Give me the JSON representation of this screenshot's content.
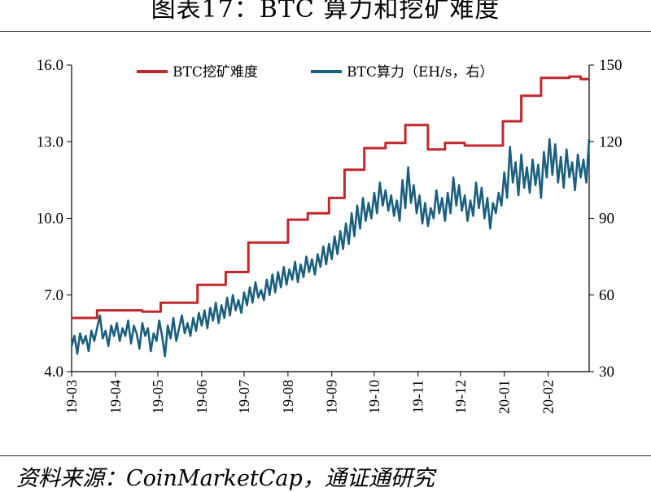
{
  "title": "图表17：BTC 算力和挖矿难度",
  "source": "资料来源：CoinMarketCap，通证通研究",
  "colors": {
    "difficulty": "#c0282d",
    "hashrate": "#1b5f7f",
    "axis": "#000000"
  },
  "chart_data": {
    "type": "line",
    "x_ticks": [
      "19-03",
      "19-04",
      "19-05",
      "19-06",
      "19-07",
      "19-08",
      "19-09",
      "19-10",
      "19-11",
      "19-12",
      "20-01",
      "20-02"
    ],
    "y_left": {
      "lim": [
        4.0,
        16.0
      ],
      "ticks": [
        "4.0",
        "7.0",
        "10.0",
        "13.0",
        "16.0"
      ]
    },
    "y_right": {
      "lim": [
        30,
        150
      ],
      "ticks": [
        "30",
        "60",
        "90",
        "120",
        "150"
      ]
    },
    "legend_placement": "top",
    "series": [
      {
        "name": "BTC挖矿难度",
        "axis": "left",
        "color": "#c0282d",
        "shape": "step",
        "points": [
          [
            "2019-03-01",
            6.1
          ],
          [
            "2019-03-19",
            6.1
          ],
          [
            "2019-03-19",
            6.4
          ],
          [
            "2019-04-20",
            6.4
          ],
          [
            "2019-04-20",
            6.35
          ],
          [
            "2019-05-03",
            6.35
          ],
          [
            "2019-05-03",
            6.7
          ],
          [
            "2019-05-29",
            6.7
          ],
          [
            "2019-05-29",
            7.4
          ],
          [
            "2019-06-18",
            7.4
          ],
          [
            "2019-06-18",
            7.9
          ],
          [
            "2019-07-04",
            7.9
          ],
          [
            "2019-07-04",
            9.05
          ],
          [
            "2019-08-01",
            9.05
          ],
          [
            "2019-08-01",
            9.95
          ],
          [
            "2019-08-15",
            9.95
          ],
          [
            "2019-08-15",
            10.2
          ],
          [
            "2019-08-30",
            10.2
          ],
          [
            "2019-08-30",
            10.8
          ],
          [
            "2019-09-10",
            10.8
          ],
          [
            "2019-09-10",
            11.9
          ],
          [
            "2019-09-24",
            11.9
          ],
          [
            "2019-09-24",
            12.75
          ],
          [
            "2019-10-09",
            12.75
          ],
          [
            "2019-10-09",
            12.95
          ],
          [
            "2019-10-23",
            12.95
          ],
          [
            "2019-10-23",
            13.65
          ],
          [
            "2019-11-08",
            13.65
          ],
          [
            "2019-11-08",
            12.7
          ],
          [
            "2019-11-20",
            12.7
          ],
          [
            "2019-11-20",
            12.95
          ],
          [
            "2019-12-04",
            12.95
          ],
          [
            "2019-12-04",
            12.85
          ],
          [
            "2019-12-31",
            12.85
          ],
          [
            "2019-12-31",
            13.8
          ],
          [
            "2020-01-13",
            13.8
          ],
          [
            "2020-01-13",
            14.8
          ],
          [
            "2020-01-27",
            14.8
          ],
          [
            "2020-01-27",
            15.5
          ],
          [
            "2020-02-16",
            15.5
          ],
          [
            "2020-02-16",
            15.55
          ],
          [
            "2020-02-24",
            15.55
          ],
          [
            "2020-02-24",
            15.45
          ],
          [
            "2020-03-01",
            15.45
          ]
        ]
      },
      {
        "name": "BTC算力（EH/s，右）",
        "axis": "right",
        "color": "#1b5f7f",
        "shape": "line",
        "points": [
          [
            "2019-03-01",
            40
          ],
          [
            "2019-03-03",
            44
          ],
          [
            "2019-03-05",
            37
          ],
          [
            "2019-03-07",
            45
          ],
          [
            "2019-03-09",
            41
          ],
          [
            "2019-03-11",
            44
          ],
          [
            "2019-03-13",
            38
          ],
          [
            "2019-03-15",
            46
          ],
          [
            "2019-03-17",
            42
          ],
          [
            "2019-03-19",
            47
          ],
          [
            "2019-03-21",
            52
          ],
          [
            "2019-03-23",
            43
          ],
          [
            "2019-03-25",
            46
          ],
          [
            "2019-03-27",
            40
          ],
          [
            "2019-03-29",
            48
          ],
          [
            "2019-03-31",
            44
          ],
          [
            "2019-04-02",
            49
          ],
          [
            "2019-04-04",
            42
          ],
          [
            "2019-04-06",
            47
          ],
          [
            "2019-04-08",
            44
          ],
          [
            "2019-04-10",
            50
          ],
          [
            "2019-04-12",
            41
          ],
          [
            "2019-04-14",
            48
          ],
          [
            "2019-04-16",
            45
          ],
          [
            "2019-04-18",
            39
          ],
          [
            "2019-04-20",
            49
          ],
          [
            "2019-04-22",
            44
          ],
          [
            "2019-04-24",
            47
          ],
          [
            "2019-04-26",
            38
          ],
          [
            "2019-04-28",
            45
          ],
          [
            "2019-04-30",
            42
          ],
          [
            "2019-05-02",
            50
          ],
          [
            "2019-05-04",
            44
          ],
          [
            "2019-05-06",
            36
          ],
          [
            "2019-05-08",
            48
          ],
          [
            "2019-05-10",
            43
          ],
          [
            "2019-05-12",
            51
          ],
          [
            "2019-05-14",
            42
          ],
          [
            "2019-05-16",
            47
          ],
          [
            "2019-05-18",
            52
          ],
          [
            "2019-05-20",
            45
          ],
          [
            "2019-05-22",
            49
          ],
          [
            "2019-05-24",
            44
          ],
          [
            "2019-05-26",
            51
          ],
          [
            "2019-05-28",
            46
          ],
          [
            "2019-05-30",
            53
          ],
          [
            "2019-06-01",
            48
          ],
          [
            "2019-06-03",
            54
          ],
          [
            "2019-06-05",
            47
          ],
          [
            "2019-06-07",
            55
          ],
          [
            "2019-06-09",
            50
          ],
          [
            "2019-06-11",
            57
          ],
          [
            "2019-06-13",
            49
          ],
          [
            "2019-06-15",
            56
          ],
          [
            "2019-06-17",
            51
          ],
          [
            "2019-06-19",
            59
          ],
          [
            "2019-06-21",
            52
          ],
          [
            "2019-06-23",
            60
          ],
          [
            "2019-06-25",
            54
          ],
          [
            "2019-06-27",
            58
          ],
          [
            "2019-06-29",
            53
          ],
          [
            "2019-07-01",
            61
          ],
          [
            "2019-07-03",
            56
          ],
          [
            "2019-07-05",
            63
          ],
          [
            "2019-07-07",
            57
          ],
          [
            "2019-07-09",
            65
          ],
          [
            "2019-07-11",
            59
          ],
          [
            "2019-07-13",
            62
          ],
          [
            "2019-07-15",
            58
          ],
          [
            "2019-07-17",
            66
          ],
          [
            "2019-07-19",
            60
          ],
          [
            "2019-07-21",
            68
          ],
          [
            "2019-07-23",
            61
          ],
          [
            "2019-07-25",
            69
          ],
          [
            "2019-07-27",
            63
          ],
          [
            "2019-07-29",
            71
          ],
          [
            "2019-07-31",
            64
          ],
          [
            "2019-08-02",
            70
          ],
          [
            "2019-08-04",
            66
          ],
          [
            "2019-08-06",
            73
          ],
          [
            "2019-08-08",
            65
          ],
          [
            "2019-08-10",
            72
          ],
          [
            "2019-08-12",
            67
          ],
          [
            "2019-08-14",
            75
          ],
          [
            "2019-08-16",
            69
          ],
          [
            "2019-08-18",
            74
          ],
          [
            "2019-08-20",
            68
          ],
          [
            "2019-08-22",
            76
          ],
          [
            "2019-08-24",
            71
          ],
          [
            "2019-08-26",
            79
          ],
          [
            "2019-08-28",
            72
          ],
          [
            "2019-08-30",
            80
          ],
          [
            "2019-09-01",
            74
          ],
          [
            "2019-09-03",
            83
          ],
          [
            "2019-09-05",
            76
          ],
          [
            "2019-09-07",
            85
          ],
          [
            "2019-09-09",
            78
          ],
          [
            "2019-09-11",
            88
          ],
          [
            "2019-09-13",
            80
          ],
          [
            "2019-09-15",
            92
          ],
          [
            "2019-09-17",
            83
          ],
          [
            "2019-09-19",
            95
          ],
          [
            "2019-09-21",
            86
          ],
          [
            "2019-09-23",
            98
          ],
          [
            "2019-09-25",
            89
          ],
          [
            "2019-09-27",
            96
          ],
          [
            "2019-09-29",
            90
          ],
          [
            "2019-10-01",
            100
          ],
          [
            "2019-10-03",
            92
          ],
          [
            "2019-10-05",
            104
          ],
          [
            "2019-10-07",
            95
          ],
          [
            "2019-10-09",
            101
          ],
          [
            "2019-10-11",
            93
          ],
          [
            "2019-10-13",
            99
          ],
          [
            "2019-10-15",
            91
          ],
          [
            "2019-10-17",
            97
          ],
          [
            "2019-10-19",
            89
          ],
          [
            "2019-10-21",
            105
          ],
          [
            "2019-10-23",
            94
          ],
          [
            "2019-10-25",
            110
          ],
          [
            "2019-10-27",
            96
          ],
          [
            "2019-10-29",
            103
          ],
          [
            "2019-10-31",
            92
          ],
          [
            "2019-11-02",
            99
          ],
          [
            "2019-11-04",
            88
          ],
          [
            "2019-11-06",
            96
          ],
          [
            "2019-11-08",
            87
          ],
          [
            "2019-11-10",
            94
          ],
          [
            "2019-11-12",
            90
          ],
          [
            "2019-11-14",
            101
          ],
          [
            "2019-11-16",
            92
          ],
          [
            "2019-11-18",
            98
          ],
          [
            "2019-11-20",
            89
          ],
          [
            "2019-11-22",
            100
          ],
          [
            "2019-11-24",
            92
          ],
          [
            "2019-11-26",
            106
          ],
          [
            "2019-11-28",
            95
          ],
          [
            "2019-11-30",
            103
          ],
          [
            "2019-12-02",
            93
          ],
          [
            "2019-12-04",
            99
          ],
          [
            "2019-12-06",
            89
          ],
          [
            "2019-12-08",
            97
          ],
          [
            "2019-12-10",
            91
          ],
          [
            "2019-12-12",
            104
          ],
          [
            "2019-12-14",
            94
          ],
          [
            "2019-12-16",
            102
          ],
          [
            "2019-12-18",
            90
          ],
          [
            "2019-12-20",
            98
          ],
          [
            "2019-12-22",
            86
          ],
          [
            "2019-12-24",
            96
          ],
          [
            "2019-12-26",
            92
          ],
          [
            "2019-12-28",
            100
          ],
          [
            "2019-12-30",
            95
          ],
          [
            "2020-01-01",
            108
          ],
          [
            "2020-01-03",
            98
          ],
          [
            "2020-01-05",
            118
          ],
          [
            "2020-01-07",
            104
          ],
          [
            "2020-01-09",
            112
          ],
          [
            "2020-01-11",
            99
          ],
          [
            "2020-01-13",
            115
          ],
          [
            "2020-01-15",
            102
          ],
          [
            "2020-01-17",
            110
          ],
          [
            "2020-01-19",
            100
          ],
          [
            "2020-01-21",
            113
          ],
          [
            "2020-01-23",
            103
          ],
          [
            "2020-01-25",
            111
          ],
          [
            "2020-01-27",
            98
          ],
          [
            "2020-01-29",
            116
          ],
          [
            "2020-01-31",
            106
          ],
          [
            "2020-02-02",
            121
          ],
          [
            "2020-02-04",
            107
          ],
          [
            "2020-02-06",
            119
          ],
          [
            "2020-02-08",
            104
          ],
          [
            "2020-02-10",
            114
          ],
          [
            "2020-02-12",
            102
          ],
          [
            "2020-02-14",
            117
          ],
          [
            "2020-02-16",
            106
          ],
          [
            "2020-02-18",
            112
          ],
          [
            "2020-02-20",
            101
          ],
          [
            "2020-02-22",
            115
          ],
          [
            "2020-02-24",
            106
          ],
          [
            "2020-02-26",
            113
          ],
          [
            "2020-02-28",
            104
          ],
          [
            "2020-03-01",
            121
          ]
        ]
      }
    ]
  }
}
